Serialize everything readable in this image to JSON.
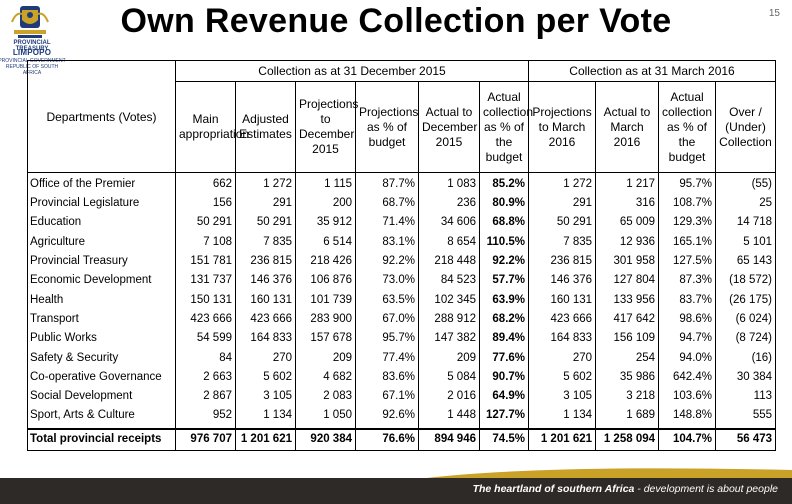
{
  "header": {
    "logo_top": "LIMPOPO",
    "logo_sub": "PROVINCIAL GOVERNMENT\nREPUBLIC OF SOUTH AFRICA",
    "logo_dept": "PROVINCIAL TREASURY",
    "title": "Own Revenue Collection per Vote",
    "page_number": "15"
  },
  "table": {
    "group1": "Collection as at 31 December 2015",
    "group2": "Collection as at 31 March 2016",
    "columns": [
      "Departments (Votes)",
      "Main appropriation",
      "Adjusted Estimates",
      "Projections to December 2015",
      "Projections as % of budget",
      "Actual to December 2015",
      "Actual collection as % of the budget",
      "Projections to March 2016",
      "Actual to March 2016",
      "Actual collection as % of the budget",
      "Over / (Under) Collection"
    ],
    "rows": [
      [
        "Office of the Premier",
        "662",
        "1 272",
        "1 115",
        "87.7%",
        "1 083",
        "85.2%",
        "1 272",
        "1 217",
        "95.7%",
        "(55)"
      ],
      [
        "Provincial Legislature",
        "156",
        "291",
        "200",
        "68.7%",
        "236",
        "80.9%",
        "291",
        "316",
        "108.7%",
        "25"
      ],
      [
        "Education",
        "50 291",
        "50 291",
        "35 912",
        "71.4%",
        "34 606",
        "68.8%",
        "50 291",
        "65 009",
        "129.3%",
        "14 718"
      ],
      [
        "Agriculture",
        "7 108",
        "7 835",
        "6 514",
        "83.1%",
        "8 654",
        "110.5%",
        "7 835",
        "12 936",
        "165.1%",
        "5 101"
      ],
      [
        "Provincial Treasury",
        "151 781",
        "236 815",
        "218 426",
        "92.2%",
        "218 448",
        "92.2%",
        "236 815",
        "301 958",
        "127.5%",
        "65 143"
      ],
      [
        "Economic Development",
        "131 737",
        "146 376",
        "106 876",
        "73.0%",
        "84 523",
        "57.7%",
        "146 376",
        "127 804",
        "87.3%",
        "(18 572)"
      ],
      [
        "Health",
        "150 131",
        "160 131",
        "101 739",
        "63.5%",
        "102 345",
        "63.9%",
        "160 131",
        "133 956",
        "83.7%",
        "(26 175)"
      ],
      [
        "Transport",
        "423 666",
        "423 666",
        "283 900",
        "67.0%",
        "288 912",
        "68.2%",
        "423 666",
        "417 642",
        "98.6%",
        "(6 024)"
      ],
      [
        "Public Works",
        "54 599",
        "164 833",
        "157 678",
        "95.7%",
        "147 382",
        "89.4%",
        "164 833",
        "156 109",
        "94.7%",
        "(8 724)"
      ],
      [
        "Safety & Security",
        "84",
        "270",
        "209",
        "77.4%",
        "209",
        "77.6%",
        "270",
        "254",
        "94.0%",
        "(16)"
      ],
      [
        "Co-operative Governance",
        "2 663",
        "5 602",
        "4 682",
        "83.6%",
        "5 084",
        "90.7%",
        "5 602",
        "35 986",
        "642.4%",
        "30 384"
      ],
      [
        "Social Development",
        "2 867",
        "3 105",
        "2 083",
        "67.1%",
        "2 016",
        "64.9%",
        "3 105",
        "3 218",
        "103.6%",
        "113"
      ],
      [
        "Sport, Arts & Culture",
        "952",
        "1 134",
        "1 050",
        "92.6%",
        "1 448",
        "127.7%",
        "1 134",
        "1 689",
        "148.8%",
        "555"
      ]
    ],
    "total": [
      "Total provincial receipts",
      "976 707",
      "1 201 621",
      "920 384",
      "76.6%",
      "894 946",
      "74.5%",
      "1 201 621",
      "1 258 094",
      "104.7%",
      "56 473"
    ]
  },
  "footer": {
    "text_bold": "The heartland of southern Africa",
    "text_rest": " - development is about people"
  },
  "colors": {
    "footer_bg": "#2e2a27",
    "gold": "#c9a227",
    "logo_blue": "#1f3c78"
  }
}
